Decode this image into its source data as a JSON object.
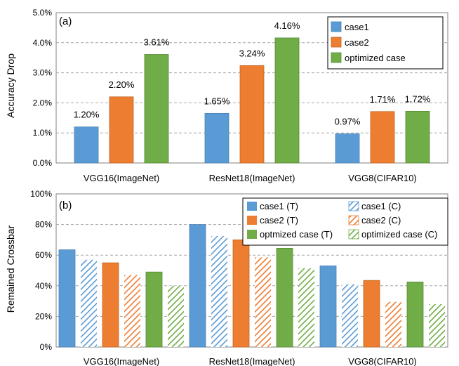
{
  "colors": {
    "blue": "#5B9BD5",
    "orange": "#ED7D31",
    "green": "#70AD47",
    "gridline": "#A6A6A6",
    "axis": "#808080"
  },
  "chart_data": [
    {
      "type": "bar",
      "panel_label": "(a)",
      "title": "",
      "ylabel": "Accuracy Drop",
      "ylim": [
        0,
        5.0
      ],
      "yticks": [
        "0.0%",
        "1.0%",
        "2.0%",
        "3.0%",
        "4.0%",
        "5.0%"
      ],
      "grid": true,
      "legend_position": "top-right",
      "categories": [
        "VGG16(ImageNet)",
        "ResNet18(ImageNet)",
        "VGG8(CIFAR10)"
      ],
      "series": [
        {
          "name": "case1",
          "color": "#5B9BD5",
          "hatch": false,
          "values": [
            1.2,
            1.65,
            0.97
          ],
          "labels": [
            "1.20%",
            "1.65%",
            "0.97%"
          ]
        },
        {
          "name": "case2",
          "color": "#ED7D31",
          "hatch": false,
          "values": [
            2.2,
            3.24,
            1.71
          ],
          "labels": [
            "2.20%",
            "3.24%",
            "1.71%"
          ]
        },
        {
          "name": "optimized case",
          "color": "#70AD47",
          "hatch": false,
          "values": [
            3.61,
            4.16,
            1.72
          ],
          "labels": [
            "3.61%",
            "4.16%",
            "1.72%"
          ]
        }
      ]
    },
    {
      "type": "bar",
      "panel_label": "(b)",
      "title": "",
      "ylabel": "Remained Crossbar",
      "ylim": [
        0,
        100
      ],
      "yticks": [
        "0%",
        "20%",
        "40%",
        "60%",
        "80%",
        "100%"
      ],
      "grid": true,
      "legend_position": "top-right",
      "categories": [
        "VGG16(ImageNet)",
        "ResNet18(ImageNet)",
        "VGG8(CIFAR10)"
      ],
      "series": [
        {
          "name": "case1 (T)",
          "color": "#5B9BD5",
          "hatch": false,
          "values": [
            63.5,
            80,
            53
          ]
        },
        {
          "name": "case1 (C)",
          "color": "#5B9BD5",
          "hatch": true,
          "values": [
            57,
            72.5,
            41
          ]
        },
        {
          "name": "case2 (T)",
          "color": "#ED7D31",
          "hatch": false,
          "values": [
            55,
            70,
            43.5
          ]
        },
        {
          "name": "case2 (C)",
          "color": "#ED7D31",
          "hatch": true,
          "values": [
            47,
            58.5,
            29.5
          ]
        },
        {
          "name": "optmized case (T)",
          "color": "#70AD47",
          "hatch": false,
          "values": [
            49,
            64.5,
            42.5
          ]
        },
        {
          "name": "optimized case (C)",
          "color": "#70AD47",
          "hatch": true,
          "values": [
            40,
            51.5,
            28
          ]
        }
      ]
    }
  ]
}
